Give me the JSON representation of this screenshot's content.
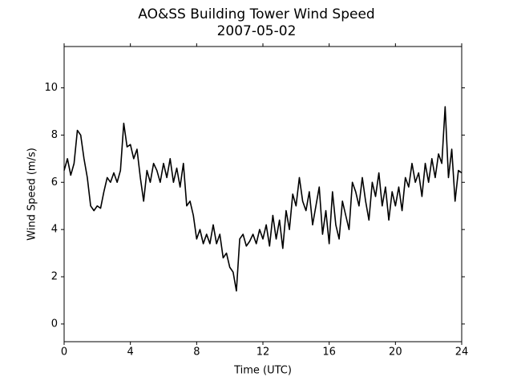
{
  "chart_data": {
    "type": "line",
    "title": "AO&SS Building Tower Wind Speed",
    "subtitle": "2007-05-02",
    "x_label": "Time (UTC)",
    "y_label": "Wind Speed (m/s)",
    "xlim": [
      0,
      24
    ],
    "ylim": [
      -0.75,
      11.75
    ],
    "xticks": [
      0,
      4,
      8,
      12,
      16,
      20,
      24
    ],
    "yticks": [
      0,
      2,
      4,
      6,
      8,
      10
    ],
    "x": [
      0,
      0.2,
      0.4,
      0.6,
      0.8,
      1,
      1.2,
      1.4,
      1.6,
      1.8,
      2,
      2.2,
      2.4,
      2.6,
      2.8,
      3,
      3.2,
      3.4,
      3.6,
      3.8,
      4,
      4.2,
      4.4,
      4.6,
      4.8,
      5,
      5.2,
      5.4,
      5.6,
      5.8,
      6,
      6.2,
      6.4,
      6.6,
      6.8,
      7,
      7.2,
      7.4,
      7.6,
      7.8,
      8,
      8.2,
      8.4,
      8.6,
      8.8,
      9,
      9.2,
      9.4,
      9.6,
      9.8,
      10,
      10.2,
      10.4,
      10.6,
      10.8,
      11,
      11.2,
      11.4,
      11.6,
      11.8,
      12,
      12.2,
      12.4,
      12.6,
      12.8,
      13,
      13.2,
      13.4,
      13.6,
      13.8,
      14,
      14.2,
      14.4,
      14.6,
      14.8,
      15,
      15.2,
      15.4,
      15.6,
      15.8,
      16,
      16.2,
      16.4,
      16.6,
      16.8,
      17,
      17.2,
      17.4,
      17.6,
      17.8,
      18,
      18.2,
      18.4,
      18.6,
      18.8,
      19,
      19.2,
      19.4,
      19.6,
      19.8,
      20,
      20.2,
      20.4,
      20.6,
      20.8,
      21,
      21.2,
      21.4,
      21.6,
      21.8,
      22,
      22.2,
      22.4,
      22.6,
      22.8,
      23,
      23.2,
      23.4,
      23.6,
      23.8,
      24
    ],
    "series": [
      {
        "color": "#000000",
        "values": [
          6.5,
          7.0,
          6.3,
          6.8,
          8.2,
          8.0,
          7.0,
          6.2,
          5.0,
          4.8,
          5.0,
          4.9,
          5.6,
          6.2,
          6.0,
          6.4,
          6.0,
          6.5,
          8.5,
          7.5,
          7.6,
          7.0,
          7.4,
          6.2,
          5.2,
          6.5,
          6.0,
          6.8,
          6.5,
          6.0,
          6.8,
          6.2,
          7.0,
          6.0,
          6.6,
          5.8,
          6.8,
          5.0,
          5.2,
          4.6,
          3.6,
          4.0,
          3.4,
          3.8,
          3.4,
          4.2,
          3.4,
          3.8,
          2.8,
          3.0,
          2.4,
          2.2,
          1.4,
          3.6,
          3.8,
          3.3,
          3.5,
          3.8,
          3.4,
          4.0,
          3.6,
          4.2,
          3.3,
          4.6,
          3.6,
          4.4,
          3.2,
          4.8,
          4.0,
          5.5,
          5.0,
          6.2,
          5.2,
          4.8,
          5.6,
          4.2,
          5.0,
          5.8,
          3.8,
          4.8,
          3.4,
          5.6,
          4.2,
          3.6,
          5.2,
          4.6,
          4.0,
          6.0,
          5.6,
          5.0,
          6.2,
          5.2,
          4.4,
          6.0,
          5.4,
          6.4,
          5.0,
          5.8,
          4.4,
          5.6,
          5.0,
          5.8,
          4.8,
          6.2,
          5.8,
          6.8,
          6.0,
          6.4,
          5.4,
          6.8,
          6.0,
          7.0,
          6.2,
          7.2,
          6.8,
          9.2,
          6.2,
          7.4,
          5.2,
          6.5,
          6.4
        ]
      }
    ]
  }
}
